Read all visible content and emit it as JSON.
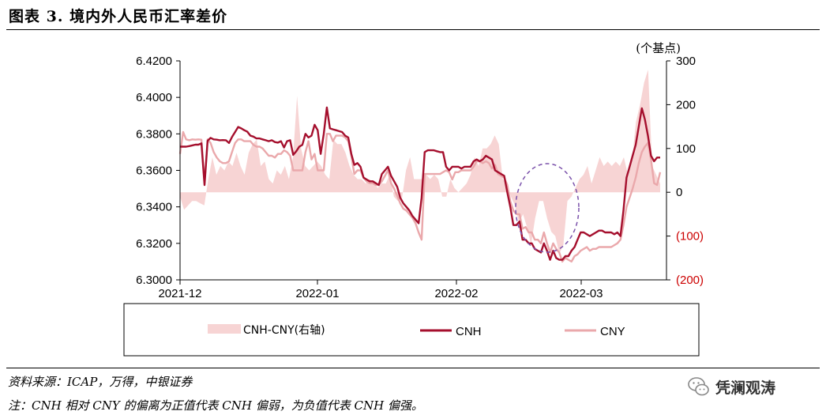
{
  "title": "图表 3. 境内外人民币汇率差价",
  "source": "资料来源：ICAP，万得，中银证券",
  "note": "注：CNH 相对 CNY 的偏离为正值代表 CNH 偏弱，为负值代表 CNH 偏强。",
  "watermark": "凭澜观涛",
  "colors": {
    "cnh": "#a50f2d",
    "cny": "#eaa8ab",
    "spread": "#f7d4d4",
    "negative_tick": "#cc0000",
    "circle": "#7b52ab"
  },
  "chart_data": {
    "type": "line",
    "x_ticks": [
      "2021-12",
      "2022-01",
      "2022-02",
      "2022-03"
    ],
    "left_axis": {
      "ylim": [
        6.3,
        6.42
      ],
      "ticks": [
        "6.3000",
        "6.3200",
        "6.3400",
        "6.3600",
        "6.3800",
        "6.4000",
        "6.4200"
      ]
    },
    "right_axis": {
      "label": "(个基点)",
      "ylim": [
        -200,
        300
      ],
      "ticks": [
        "(200)",
        "(100)",
        "0",
        "100",
        "200",
        "300"
      ]
    },
    "series": [
      {
        "name": "CNH-CNY(右轴)",
        "type": "area",
        "axis": "right",
        "values": [
          -10,
          -40,
          -30,
          -20,
          -20,
          -25,
          -30,
          30,
          80,
          40,
          60,
          50,
          70,
          60,
          90,
          60,
          40,
          90,
          110,
          120,
          60,
          70,
          30,
          20,
          50,
          40,
          60,
          30,
          80,
          220,
          100,
          60,
          50,
          60,
          70,
          60,
          40,
          30,
          120,
          110,
          110,
          90,
          60,
          40,
          30,
          30,
          20,
          30,
          20,
          10,
          20,
          20,
          40,
          -10,
          -20,
          -15,
          50,
          80,
          30,
          30,
          30,
          40,
          30,
          40,
          30,
          -10,
          -10,
          30,
          10,
          0,
          10,
          20,
          40,
          80,
          60,
          100,
          100,
          110,
          130,
          110,
          30,
          20,
          -10,
          -30,
          -70,
          -50,
          -80,
          -120,
          -60,
          -20,
          -20,
          -60,
          -90,
          -100,
          -140,
          -120,
          -20,
          -10,
          10,
          30,
          40,
          60,
          20,
          50,
          80,
          60,
          70,
          60,
          70,
          60,
          80,
          40,
          70,
          160,
          200,
          250,
          280,
          60,
          40,
          20
        ]
      },
      {
        "name": "CNH",
        "type": "line",
        "axis": "left",
        "values": [
          6.373,
          6.373,
          6.373,
          6.3733,
          6.3737,
          6.3741,
          6.3741,
          6.3748,
          6.352,
          6.3762,
          6.3778,
          6.377,
          6.3768,
          6.3765,
          6.3766,
          6.3765,
          6.375,
          6.3783,
          6.381,
          6.3838,
          6.383,
          6.382,
          6.3812,
          6.379,
          6.3785,
          6.3775,
          6.3775,
          6.377,
          6.3765,
          6.376,
          6.3765,
          6.3755,
          6.3752,
          6.376,
          6.3725,
          6.376,
          6.3765,
          6.3685,
          6.3705,
          6.373,
          6.374,
          6.38,
          6.378,
          6.379,
          6.385,
          6.382,
          6.369,
          6.38,
          6.3945,
          6.383,
          6.3825,
          6.382,
          6.3815,
          6.381,
          6.379,
          6.378,
          6.369,
          6.363,
          6.364,
          6.362,
          6.356,
          6.355,
          6.354,
          6.354,
          6.353,
          6.352,
          6.358,
          6.36,
          6.362,
          6.357,
          6.354,
          6.351,
          6.345,
          6.342,
          6.34,
          6.338,
          6.335,
          6.333,
          6.331,
          6.345,
          6.37,
          6.371,
          6.371,
          6.371,
          6.3705,
          6.37,
          6.37,
          6.362,
          6.36,
          6.362,
          6.362,
          6.362,
          6.361,
          6.362,
          6.362,
          6.362,
          6.365,
          6.366,
          6.365,
          6.366,
          6.368,
          6.367,
          6.366,
          6.36,
          6.359,
          6.358,
          6.357,
          6.348,
          6.34,
          6.33,
          6.33,
          6.332,
          6.322,
          6.322,
          6.32,
          6.32,
          6.317,
          6.316,
          6.315,
          6.32,
          6.316,
          6.311,
          6.316,
          6.312,
          6.311,
          6.311,
          6.313,
          6.313,
          6.316,
          6.318,
          6.322,
          6.326,
          6.326,
          6.325,
          6.324,
          6.325,
          6.326,
          6.327,
          6.327,
          6.326,
          6.326,
          6.326,
          6.325,
          6.326,
          6.324,
          6.338,
          6.356,
          6.362,
          6.368,
          6.374,
          6.384,
          6.394,
          6.388,
          6.379,
          6.368,
          6.365,
          6.367,
          6.367
        ]
      },
      {
        "name": "CNY",
        "type": "line",
        "axis": "left",
        "values": [
          6.369,
          6.381,
          6.377,
          6.3765,
          6.377,
          6.3768,
          6.377,
          6.3768,
          6.353,
          6.377,
          6.375,
          6.37,
          6.367,
          6.365,
          6.364,
          6.364,
          6.365,
          6.37,
          6.375,
          6.377,
          6.377,
          6.376,
          6.376,
          6.376,
          6.374,
          6.373,
          6.373,
          6.372,
          6.37,
          6.368,
          6.368,
          6.367,
          6.369,
          6.369,
          6.371,
          6.37,
          6.368,
          6.36,
          6.36,
          6.36,
          6.36,
          6.37,
          6.376,
          6.366,
          6.369,
          6.36,
          6.36,
          6.36,
          6.38,
          6.38,
          6.376,
          6.379,
          6.379,
          6.379,
          6.378,
          6.376,
          6.368,
          6.358,
          6.36,
          6.36,
          6.356,
          6.354,
          6.353,
          6.353,
          6.352,
          6.352,
          6.354,
          6.357,
          6.36,
          6.353,
          6.35,
          6.346,
          6.342,
          6.339,
          6.338,
          6.336,
          6.334,
          6.331,
          6.326,
          6.322,
          6.358,
          6.358,
          6.358,
          6.358,
          6.358,
          6.358,
          6.359,
          6.36,
          6.359,
          6.355,
          6.359,
          6.359,
          6.36,
          6.36,
          6.36,
          6.36,
          6.362,
          6.365,
          6.365,
          6.364,
          6.365,
          6.364,
          6.361,
          6.363,
          6.358,
          6.357,
          6.356,
          6.352,
          6.343,
          6.338,
          6.336,
          6.336,
          6.328,
          6.329,
          6.326,
          6.326,
          6.322,
          6.322,
          6.32,
          6.326,
          6.32,
          6.315,
          6.32,
          6.317,
          6.315,
          6.31,
          6.312,
          6.311,
          6.31,
          6.313,
          6.314,
          6.316,
          6.317,
          6.318,
          6.316,
          6.317,
          6.317,
          6.318,
          6.318,
          6.318,
          6.318,
          6.318,
          6.319,
          6.32,
          6.322,
          6.33,
          6.34,
          6.345,
          6.35,
          6.356,
          6.364,
          6.37,
          6.373,
          6.375,
          6.366,
          6.353,
          6.352,
          6.359
        ]
      }
    ],
    "legend": {
      "position": "bottom"
    },
    "annotation": "dashed ellipse"
  }
}
